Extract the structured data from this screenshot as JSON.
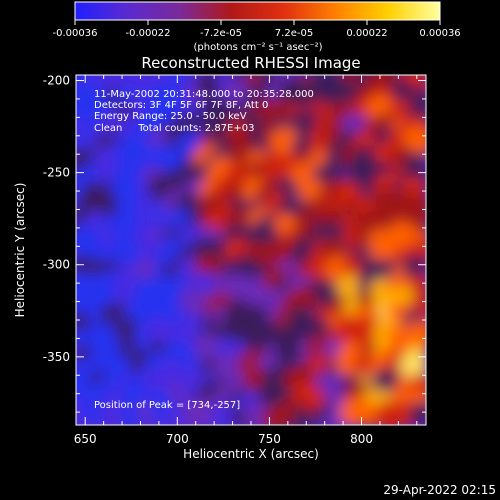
{
  "colorbar": {
    "ticks": [
      "-0.00036",
      "-0.00022",
      "-7.2e-05",
      "7.2e-05",
      "0.00022",
      "0.00036"
    ],
    "units": "(photons cm⁻² s⁻¹ asec⁻²)",
    "stops": [
      "#2020ff",
      "#5a2ad0",
      "#7a2a9a",
      "#b01818",
      "#e03010",
      "#ff8000",
      "#ffd000",
      "#ffffa0"
    ]
  },
  "chart_data": {
    "type": "heatmap",
    "title": "Reconstructed RHESSI Image",
    "xlabel": "Heliocentric X (arcsec)",
    "ylabel": "Heliocentric Y (arcsec)",
    "xlim": [
      645,
      835
    ],
    "ylim": [
      -387,
      -197
    ],
    "xticks": [
      "650",
      "700",
      "750",
      "800"
    ],
    "yticks": [
      "-200",
      "-250",
      "-300",
      "-350"
    ],
    "xtick_values": [
      650,
      700,
      750,
      800
    ],
    "ytick_values": [
      -200,
      -250,
      -300,
      -350
    ],
    "zlim": [
      -0.00036,
      0.00036
    ],
    "annotations": [
      "11-May-2002 20:31:48.000 to 20:35:28.000",
      "Detectors: 3F 4F 5F 6F 7F 8F, Att 0",
      "Energy Range: 25.0 - 50.0 keV",
      "Clean     Total counts: 2.87E+03"
    ],
    "peak_label": "Position of Peak = [734,-257]",
    "peak_position": [
      734,
      -257
    ]
  },
  "footer": {
    "timestamp": "29-Apr-2022 02:15"
  }
}
